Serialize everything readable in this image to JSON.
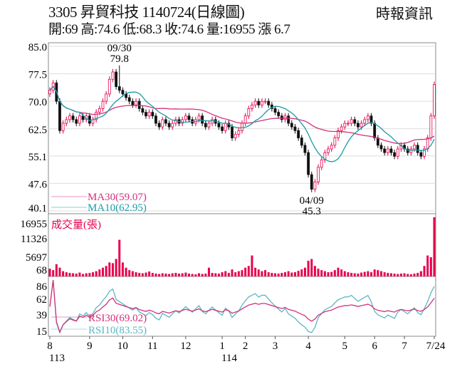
{
  "header": {
    "title": "3305  昇貿科技 1140724(日線圖)",
    "summary": "開:69 高:74.6 低:68.3 收:74.6 量:16955 漲 6.7",
    "brand": "時報資訊"
  },
  "chart_data": [
    {
      "type": "candlestick",
      "panel": "price",
      "ylim": [
        40.1,
        85.0
      ],
      "yticks": [
        "85.0",
        "77.5",
        "70.0",
        "62.5",
        "55.1",
        "47.6",
        "40.1"
      ],
      "up_color": "#e8004c",
      "down_color": "#111111",
      "close": [
        73,
        75,
        70,
        62,
        64,
        65,
        66,
        65,
        64,
        66,
        65,
        66,
        64,
        65,
        67,
        68,
        70,
        72,
        76,
        78,
        74,
        73,
        72,
        71,
        70,
        69,
        70,
        68,
        67,
        66,
        67,
        66,
        64,
        63,
        65,
        64,
        63,
        64,
        65,
        64,
        65,
        66,
        65,
        64,
        65,
        66,
        64,
        63,
        64,
        65,
        64,
        63,
        62,
        64,
        63,
        60,
        61,
        62,
        64,
        66,
        68,
        69,
        70,
        69,
        70,
        70,
        69,
        68,
        67,
        66,
        65,
        66,
        64,
        63,
        62,
        60,
        58,
        56,
        50,
        46,
        48,
        52,
        54,
        56,
        57,
        58,
        60,
        62,
        63,
        64,
        64,
        65,
        64,
        63,
        64,
        65,
        66,
        64,
        60,
        58,
        57,
        56,
        57,
        56,
        55,
        57,
        58,
        57,
        56,
        57,
        58,
        56,
        55,
        57,
        60,
        66,
        74.6
      ],
      "annotations": [
        {
          "index": 21,
          "date": "09/30",
          "value": "79.8",
          "position": "above"
        },
        {
          "index": 79,
          "date": "04/09",
          "value": "45.3",
          "position": "below"
        }
      ],
      "legend": [
        {
          "name": "MA30(59.07)",
          "color": "#d4307a"
        },
        {
          "name": "MA10(62.95)",
          "color": "#1a9aa8"
        }
      ]
    },
    {
      "type": "bar",
      "panel": "volume",
      "label": "成交量(張)",
      "ylim": [
        68,
        16955
      ],
      "yticks": [
        "16955",
        "11326",
        "5697",
        "68"
      ],
      "color": "#e8004c",
      "values": [
        2200,
        1800,
        3500,
        2500,
        1500,
        1200,
        1000,
        900,
        800,
        1100,
        700,
        900,
        1000,
        1200,
        1500,
        2000,
        2500,
        3000,
        4000,
        3800,
        5000,
        10500,
        4000,
        2500,
        1800,
        1500,
        1200,
        1000,
        900,
        1100,
        1400,
        1000,
        800,
        700,
        900,
        800,
        700,
        900,
        1000,
        800,
        900,
        1100,
        800,
        700,
        600,
        900,
        700,
        800,
        2500,
        1000,
        900,
        800,
        1200,
        1500,
        1000,
        2000,
        1200,
        1500,
        1800,
        2500,
        3000,
        6000,
        2500,
        2000,
        1500,
        1800,
        1200,
        1000,
        900,
        800,
        1000,
        1200,
        1500,
        1100,
        1200,
        1600,
        2000,
        2500,
        4500,
        5000,
        3000,
        2200,
        1800,
        1500,
        1200,
        1300,
        1800,
        2500,
        2000,
        1500,
        1200,
        1000,
        900,
        800,
        1100,
        1300,
        1500,
        1200,
        2000,
        1800,
        1500,
        1200,
        1000,
        900,
        800,
        700,
        800,
        900,
        700,
        600,
        800,
        1000,
        1500,
        3000,
        6000,
        5500,
        16955
      ]
    },
    {
      "type": "line",
      "panel": "rsi",
      "ylim": [
        15,
        86
      ],
      "yticks": [
        "86",
        "62",
        "39",
        "15"
      ],
      "legend": [
        {
          "name": "RSI30(69.02)",
          "color": "#d4307a"
        },
        {
          "name": "RSI10(83.55)",
          "color": "#5ab8c4"
        }
      ]
    }
  ],
  "x_axis": {
    "ticks": [
      {
        "index": 0,
        "label": "8",
        "year": "113"
      },
      {
        "index": 12,
        "label": "9"
      },
      {
        "index": 22,
        "label": "10"
      },
      {
        "index": 31,
        "label": "11"
      },
      {
        "index": 41,
        "label": "12"
      },
      {
        "index": 52,
        "label": "1",
        "year": "114"
      },
      {
        "index": 59,
        "label": "2"
      },
      {
        "index": 68,
        "label": "3"
      },
      {
        "index": 78,
        "label": "4"
      },
      {
        "index": 89,
        "label": "5"
      },
      {
        "index": 98,
        "label": "6"
      },
      {
        "index": 107,
        "label": "7"
      },
      {
        "index": 116,
        "label": "7/24"
      }
    ]
  }
}
